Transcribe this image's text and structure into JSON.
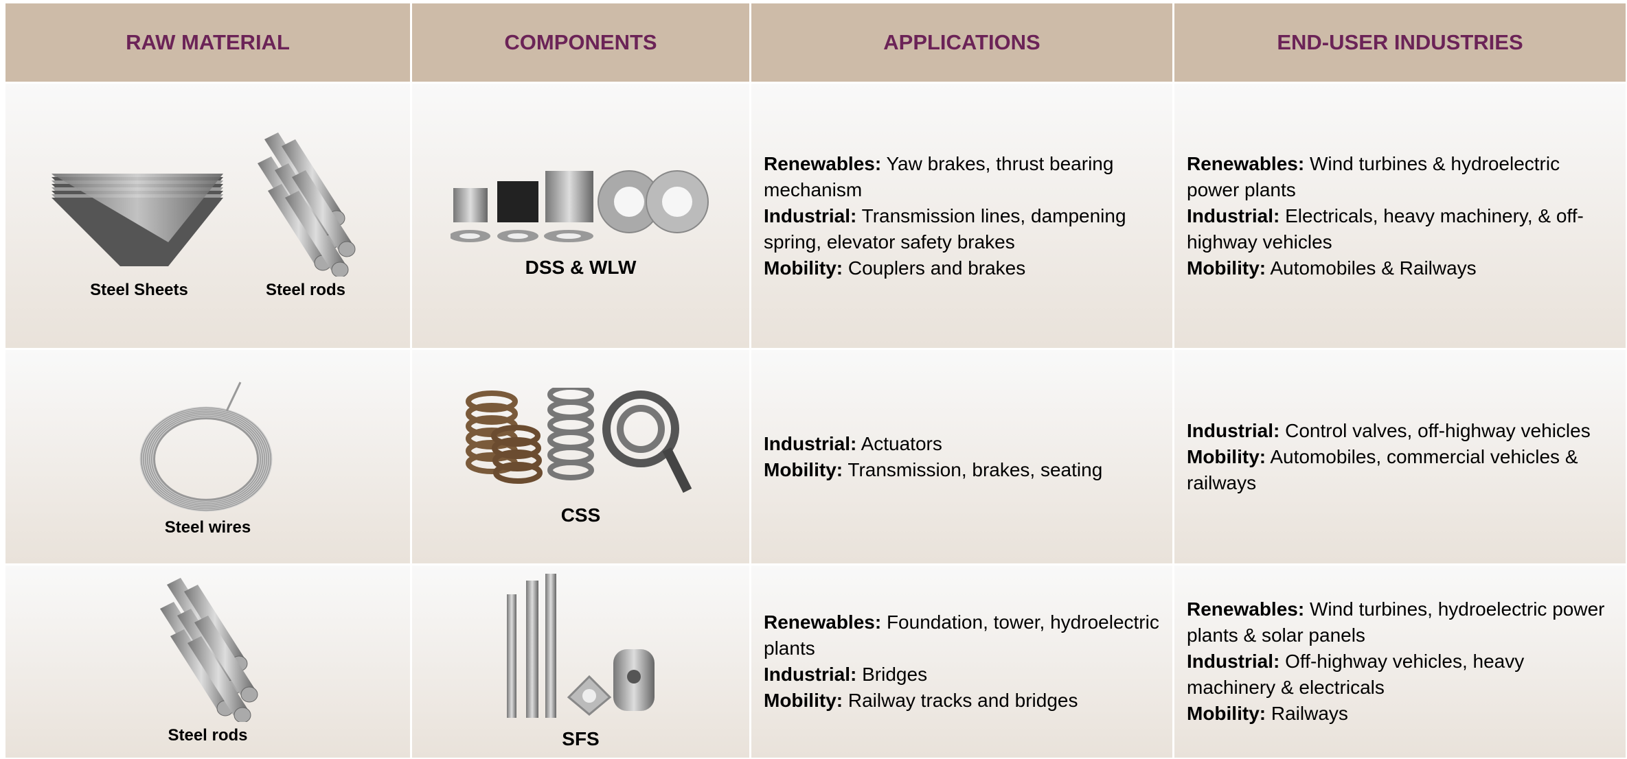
{
  "table": {
    "headers": [
      "RAW MATERIAL",
      "COMPONENTS",
      "APPLICATIONS",
      "END-USER INDUSTRIES"
    ],
    "rows": [
      {
        "raw_materials": [
          "Steel Sheets",
          "Steel rods"
        ],
        "component": "DSS & WLW",
        "applications": [
          {
            "label": "Renewables:",
            "text": "Yaw brakes, thrust bearing mechanism"
          },
          {
            "label": "Industrial:",
            "text": "Transmission lines, dampening spring, elevator safety brakes"
          },
          {
            "label": "Mobility:",
            "text": "Couplers and brakes"
          }
        ],
        "end_users": [
          {
            "label": "Renewables:",
            "text": "Wind turbines & hydroelectric power plants"
          },
          {
            "label": "Industrial:",
            "text": "Electricals, heavy machinery, & off-highway vehicles"
          },
          {
            "label": "Mobility:",
            "text": "Automobiles & Railways"
          }
        ]
      },
      {
        "raw_materials": [
          "Steel wires"
        ],
        "component": "CSS",
        "applications": [
          {
            "label": "Industrial:",
            "text": "Actuators"
          },
          {
            "label": "Mobility:",
            "text": "Transmission, brakes, seating"
          }
        ],
        "end_users": [
          {
            "label": "Industrial:",
            "text": "Control valves, off-highway vehicles"
          },
          {
            "label": "Mobility:",
            "text": "Automobiles, commercial vehicles & railways"
          }
        ]
      },
      {
        "raw_materials": [
          "Steel rods"
        ],
        "component": "SFS",
        "applications": [
          {
            "label": "Renewables:",
            "text": "Foundation, tower, hydroelectric plants"
          },
          {
            "label": "Industrial:",
            "text": "Bridges"
          },
          {
            "label": "Mobility:",
            "text": "Railway tracks and bridges"
          }
        ],
        "end_users": [
          {
            "label": "Renewables:",
            "text": "Wind turbines, hydroelectric power plants & solar panels"
          },
          {
            "label": "Industrial:",
            "text": "Off-highway vehicles, heavy machinery & electricals"
          },
          {
            "label": "Mobility:",
            "text": "Railways"
          }
        ]
      }
    ]
  }
}
